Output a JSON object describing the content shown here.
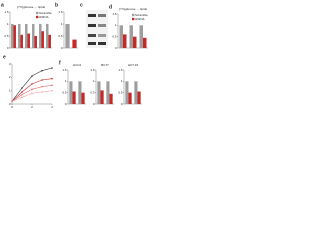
{
  "chart_data": [
    {
      "type": "bar",
      "label": "a",
      "title": "[¹⁴C]glucose → lipids",
      "categories": [
        null,
        null,
        null,
        null,
        null,
        null
      ],
      "series": [
        {
          "name": "Scramble",
          "color": "#9e9e9e",
          "values": [
            1,
            1,
            1,
            1,
            1,
            1
          ]
        },
        {
          "name": "shRNA",
          "color": "#c62828",
          "values": [
            0.95,
            0.55,
            0.6,
            0.5,
            0.7,
            0.55
          ]
        }
      ],
      "ylim": [
        0,
        1.5
      ],
      "yticks": [
        0,
        0.5,
        1,
        1.5
      ],
      "legend": "upper right"
    },
    {
      "type": "bar",
      "label": "b",
      "categories": [
        null,
        null
      ],
      "values": [
        1,
        0.35
      ],
      "colors": [
        "#9e9e9e",
        "#c62828"
      ],
      "ylim": [
        0,
        1.5
      ],
      "yticks": [
        0,
        0.5,
        1,
        1.5
      ]
    },
    {
      "type": "bar",
      "label": "d",
      "title": "[¹⁴C]glucose → lipids",
      "categories": [
        null,
        null,
        null
      ],
      "series": [
        {
          "name": "Scramble",
          "color": "#9e9e9e",
          "values": [
            1,
            1,
            1
          ]
        },
        {
          "name": "shRNA",
          "color": "#c62828",
          "values": [
            0.6,
            0.5,
            0.45
          ]
        }
      ],
      "ylim": [
        0,
        1.5
      ],
      "yticks": [
        0,
        0.5,
        1,
        1.5
      ],
      "legend": "upper right"
    },
    {
      "type": "line",
      "label": "e",
      "x": [
        0,
        1,
        2,
        3,
        4
      ],
      "xlim": [
        0,
        4
      ],
      "xticks": [
        0,
        2,
        4
      ],
      "series": [
        {
          "color": "#333333",
          "values": [
            0.2,
            1.2,
            2.1,
            2.5,
            2.7
          ]
        },
        {
          "color": "#c62828",
          "values": [
            0.2,
            0.9,
            1.5,
            1.8,
            1.9
          ]
        },
        {
          "color": "#e57373",
          "values": [
            0.2,
            0.7,
            1.1,
            1.3,
            1.4
          ]
        },
        {
          "color": "#f4a6a6",
          "values": [
            0.2,
            0.5,
            0.8,
            0.9,
            1.0
          ]
        }
      ],
      "ylim": [
        0,
        3
      ],
      "yticks": [
        0,
        1,
        2,
        3
      ]
    },
    {
      "type": "bar",
      "label": "f",
      "title": "HCC4",
      "categories": [
        null,
        null
      ],
      "series": [
        {
          "name": "Scramble",
          "color": "#9e9e9e",
          "values": [
            1,
            1
          ]
        },
        {
          "name": "shRNA",
          "color": "#c62828",
          "values": [
            0.55,
            0.5
          ]
        }
      ],
      "ylim": [
        0,
        1.5
      ],
      "yticks": [
        0,
        0.5,
        1,
        1.5
      ]
    },
    {
      "type": "bar",
      "title": "BCT7",
      "categories": [
        null,
        null
      ],
      "series": [
        {
          "color": "#9e9e9e",
          "values": [
            1,
            1
          ]
        },
        {
          "color": "#c62828",
          "values": [
            0.6,
            0.45
          ]
        }
      ],
      "ylim": [
        0,
        1.5
      ],
      "yticks": [
        0,
        0.5,
        1,
        1.5
      ]
    },
    {
      "type": "bar",
      "title": "HCT-15",
      "categories": [
        null,
        null
      ],
      "series": [
        {
          "color": "#9e9e9e",
          "values": [
            1,
            1
          ]
        },
        {
          "color": "#c62828",
          "values": [
            0.5,
            0.55
          ]
        }
      ],
      "ylim": [
        0,
        1.5
      ],
      "yticks": [
        0,
        0.5,
        1,
        1.5
      ]
    }
  ],
  "blot": {
    "label": "c"
  }
}
